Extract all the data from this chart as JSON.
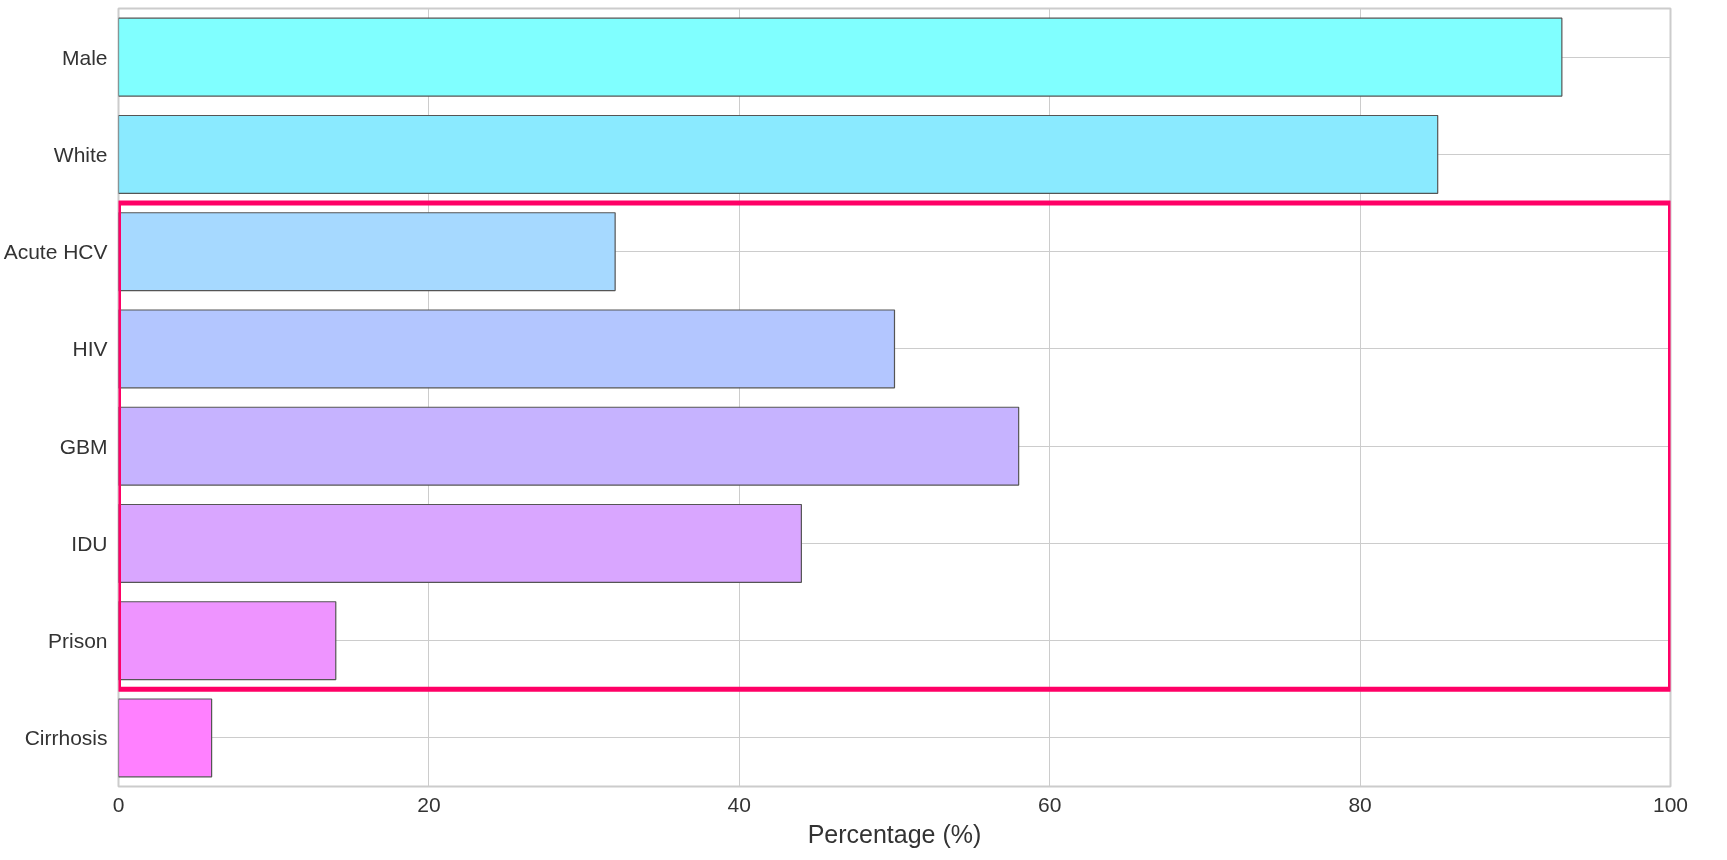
{
  "chart_data": {
    "type": "bar",
    "orientation": "horizontal",
    "xlabel": "Percentage (%)",
    "categories": [
      "Male",
      "White",
      "Acute HCV",
      "HIV",
      "GBM",
      "IDU",
      "Prison",
      "Cirrhosis"
    ],
    "values": [
      93,
      85,
      32,
      50,
      58,
      44,
      14,
      6
    ],
    "colors": [
      "#80ffff",
      "#8aeaff",
      "#a6d9ff",
      "#b3c6ff",
      "#c6b3ff",
      "#d9a6ff",
      "#ee94ff",
      "#ff80ff"
    ],
    "xlim": [
      0,
      100
    ],
    "xticks": [
      0,
      20,
      40,
      60,
      80,
      100
    ],
    "grid": true
  }
}
